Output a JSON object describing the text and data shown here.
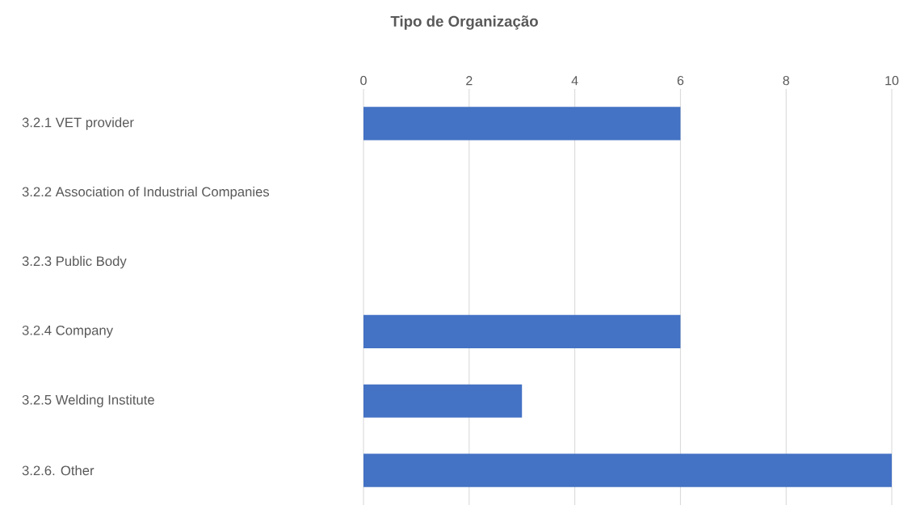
{
  "chart_data": {
    "type": "bar",
    "orientation": "horizontal",
    "title": "Tipo de Organização",
    "categories": [
      "3.2.1  VET provider",
      "3.2.2 Association of Industrial Companies",
      "3.2.3  Public Body",
      "3.2.4  Company",
      "3.2.5 Welding Institute",
      "3.2.6. Other"
    ],
    "values": [
      6,
      0,
      0,
      6,
      3,
      10
    ],
    "color": "#4472c4",
    "xlim": [
      0,
      10
    ],
    "xticks": [
      0,
      2,
      4,
      6,
      8,
      10
    ],
    "grid": "x"
  }
}
